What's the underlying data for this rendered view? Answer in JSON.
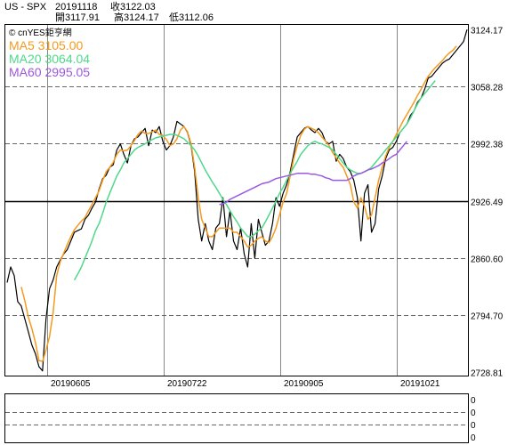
{
  "header": {
    "symbol": "US - SPX",
    "date": "20191118",
    "close_label": "收3122.03",
    "open_label": "開3117.91",
    "high_label": "高3124.17",
    "low_label": "低3112.06"
  },
  "chart_data": {
    "type": "line",
    "watermark": "© cnYES鉅亨網",
    "y_ticks": [
      3124.17,
      3058.28,
      2992.38,
      2926.49,
      2860.6,
      2794.7,
      2728.81
    ],
    "ylim": [
      2728.81,
      3124.17
    ],
    "x_labels": [
      "20190605",
      "20190722",
      "20190905",
      "20191021"
    ],
    "grid": true,
    "legend": [
      {
        "name": "MA5",
        "value": "3105.00",
        "color": "#f59a1e"
      },
      {
        "name": "MA20",
        "value": "3064.04",
        "color": "#4fd98a"
      },
      {
        "name": "MA60",
        "value": "2995.05",
        "color": "#9b59e0"
      }
    ],
    "series": [
      {
        "name": "SPX",
        "color": "#000000",
        "values": [
          2832,
          2850,
          2840,
          2810,
          2805,
          2790,
          2775,
          2760,
          2750,
          2735,
          2730,
          2790,
          2825,
          2835,
          2850,
          2858,
          2865,
          2870,
          2880,
          2890,
          2892,
          2894,
          2905,
          2910,
          2918,
          2925,
          2940,
          2952,
          2956,
          2965,
          2968,
          2985,
          2992,
          2980,
          2970,
          2990,
          2998,
          3000,
          3005,
          3010,
          2990,
          3008,
          3005,
          3012,
          2995,
          2985,
          2990,
          3000,
          3018,
          3015,
          3012,
          3005,
          2990,
          2960,
          2905,
          2880,
          2900,
          2880,
          2870,
          2895,
          2900,
          2930,
          2885,
          2915,
          2880,
          2870,
          2895,
          2865,
          2850,
          2900,
          2860,
          2905,
          2890,
          2875,
          2880,
          2900,
          2930,
          2920,
          2935,
          2945,
          2960,
          2980,
          3000,
          3005,
          3010,
          3012,
          3008,
          3005,
          3010,
          3005,
          2995,
          2992,
          2995,
          2972,
          2980,
          2975,
          2965,
          2960,
          2950,
          2930,
          2880,
          2935,
          2945,
          2890,
          2900,
          2940,
          2955,
          2975,
          2985,
          2988,
          2995,
          3005,
          3010,
          3015,
          3025,
          3030,
          3040,
          3045,
          3055,
          3068,
          3070,
          3075,
          3080,
          3085,
          3088,
          3090,
          3095,
          3100,
          3105,
          3110,
          3124
        ]
      },
      {
        "name": "MA5",
        "color": "#f59a1e",
        "values": [
          null,
          null,
          null,
          null,
          2827,
          2811,
          2792,
          2779,
          2763,
          2742,
          2741,
          2754,
          2770,
          2797,
          2840,
          2856,
          2866,
          2876,
          2885,
          2893,
          2898,
          2903,
          2907,
          2915,
          2922,
          2930,
          2938,
          2950,
          2960,
          2965,
          2971,
          2980,
          2985,
          2984,
          2985,
          2990,
          2996,
          3003,
          3007,
          3004,
          3004,
          3006,
          3008,
          3003,
          3002,
          2997,
          2990,
          2992,
          2998,
          3008,
          3012,
          3006,
          2992,
          2965,
          2930,
          2905,
          2895,
          2885,
          2885,
          2890,
          2895,
          2895,
          2895,
          2895,
          2890,
          2890,
          2885,
          2880,
          2873,
          2875,
          2880,
          2883,
          2885,
          2880,
          2878,
          2885,
          2895,
          2910,
          2925,
          2935,
          2955,
          2975,
          2990,
          3002,
          3009,
          3012,
          3010,
          3008,
          3005,
          3000,
          2995,
          2990,
          2982,
          2976,
          2970,
          2965,
          2955,
          2945,
          2925,
          2918,
          2930,
          2920,
          2905,
          2910,
          2930,
          2950,
          2965,
          2978,
          2988,
          2995,
          3003,
          3011,
          3019,
          3026,
          3033,
          3040,
          3048,
          3055,
          3063,
          3070,
          3075,
          3080,
          3084,
          3088,
          3093,
          3097,
          3100,
          3105
        ]
      },
      {
        "name": "MA20",
        "color": "#4fd98a",
        "values": [
          null,
          null,
          null,
          null,
          null,
          null,
          null,
          null,
          null,
          null,
          null,
          null,
          null,
          null,
          null,
          null,
          null,
          null,
          null,
          2835,
          2842,
          2850,
          2860,
          2870,
          2880,
          2892,
          2900,
          2912,
          2925,
          2935,
          2945,
          2955,
          2962,
          2970,
          2975,
          2980,
          2985,
          2988,
          2990,
          2992,
          2995,
          2997,
          2999,
          3000,
          3001,
          3002,
          3003,
          3003,
          3002,
          3000,
          2998,
          2994,
          2990,
          2985,
          2978,
          2970,
          2962,
          2955,
          2948,
          2942,
          2935,
          2928,
          2922,
          2915,
          2908,
          2902,
          2895,
          2890,
          2885,
          2885,
          2888,
          2892,
          2895,
          2902,
          2910,
          2918,
          2926,
          2935,
          2942,
          2950,
          2958,
          2965,
          2972,
          2980,
          2985,
          2990,
          2993,
          2995,
          2993,
          2992,
          2990,
          2988,
          2985,
          2980,
          2975,
          2970,
          2965,
          2962,
          2960,
          2958,
          2958,
          2960,
          2962,
          2965,
          2970,
          2975,
          2980,
          2985,
          2990,
          2995,
          3000,
          3005,
          3010,
          3015,
          3022,
          3030,
          3038,
          3045,
          3050,
          3055,
          3060,
          3065
        ]
      },
      {
        "name": "MA60",
        "color": "#9b59e0",
        "values": [
          null,
          null,
          null,
          null,
          null,
          null,
          null,
          null,
          null,
          null,
          null,
          null,
          null,
          null,
          null,
          null,
          null,
          null,
          null,
          null,
          null,
          null,
          null,
          null,
          null,
          null,
          null,
          null,
          null,
          null,
          null,
          null,
          null,
          null,
          null,
          null,
          null,
          null,
          null,
          null,
          null,
          null,
          null,
          null,
          null,
          null,
          null,
          null,
          null,
          null,
          null,
          null,
          null,
          null,
          null,
          null,
          null,
          null,
          null,
          null,
          2922,
          2923,
          2925,
          2928,
          2930,
          2932,
          2934,
          2936,
          2938,
          2940,
          2942,
          2944,
          2946,
          2947,
          2948,
          2950,
          2952,
          2953,
          2954,
          2955,
          2956,
          2957,
          2958,
          2958,
          2958,
          2958,
          2957,
          2957,
          2956,
          2955,
          2953,
          2952,
          2950,
          2950,
          2950,
          2950,
          2950,
          2952,
          2955,
          2957,
          2958,
          2960,
          2962,
          2963,
          2965,
          2967,
          2970,
          2972,
          2975,
          2978,
          2980,
          2985,
          2990,
          2995
        ]
      }
    ]
  },
  "sub_panel": {
    "y_labels": [
      "0",
      "0",
      "0",
      "0"
    ]
  }
}
